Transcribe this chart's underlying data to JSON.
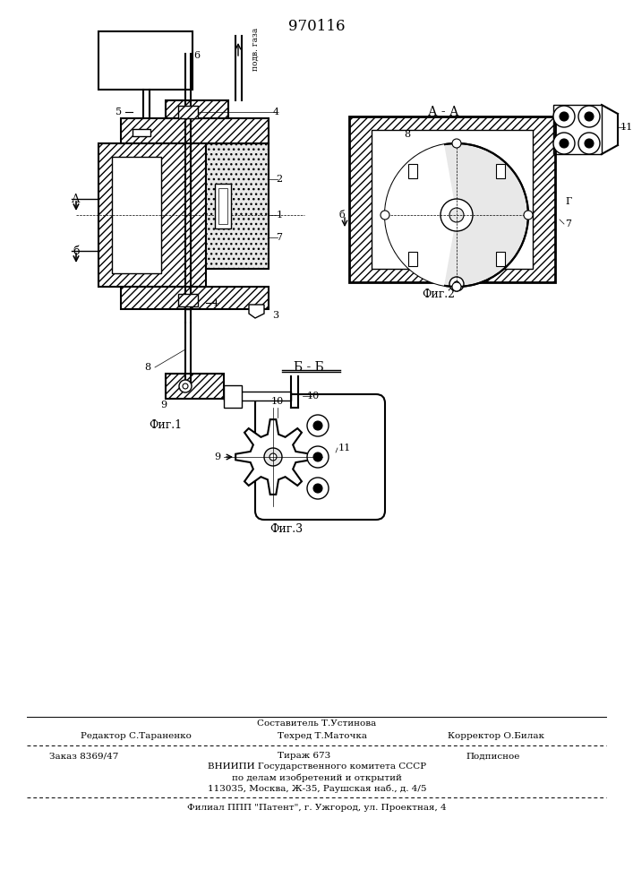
{
  "patent_number": "970116",
  "bg_color": "#ffffff",
  "line_color": "#000000",
  "fig1_label": "Фиг.1",
  "fig2_label": "Фиг.2",
  "fig3_label": "Фиг.3",
  "section_aa": "А - А",
  "section_bb": "Б - Б",
  "footer_line1_left": "Редактор С.Тараненко",
  "footer_line1_mid": "Составитель Т.Устинова",
  "footer_line1_mid2": "Техред Т.Маточка",
  "footer_line1_right": "Корректор О.Билак",
  "footer_line2_left": "Заказ 8369/47",
  "footer_line2_mid": "Тираж 673",
  "footer_line2_right": "Подписное",
  "footer_line3": "ВНИИПИ Государственного комитета СССР",
  "footer_line4": "по делам изобретений и открытий",
  "footer_line5": "113035, Москва, Ж-35, Раушская наб., д. 4/5",
  "footer_line6": "Филиал ППП \"Патент\", г. Ужгород, ул. Проектная, 4"
}
